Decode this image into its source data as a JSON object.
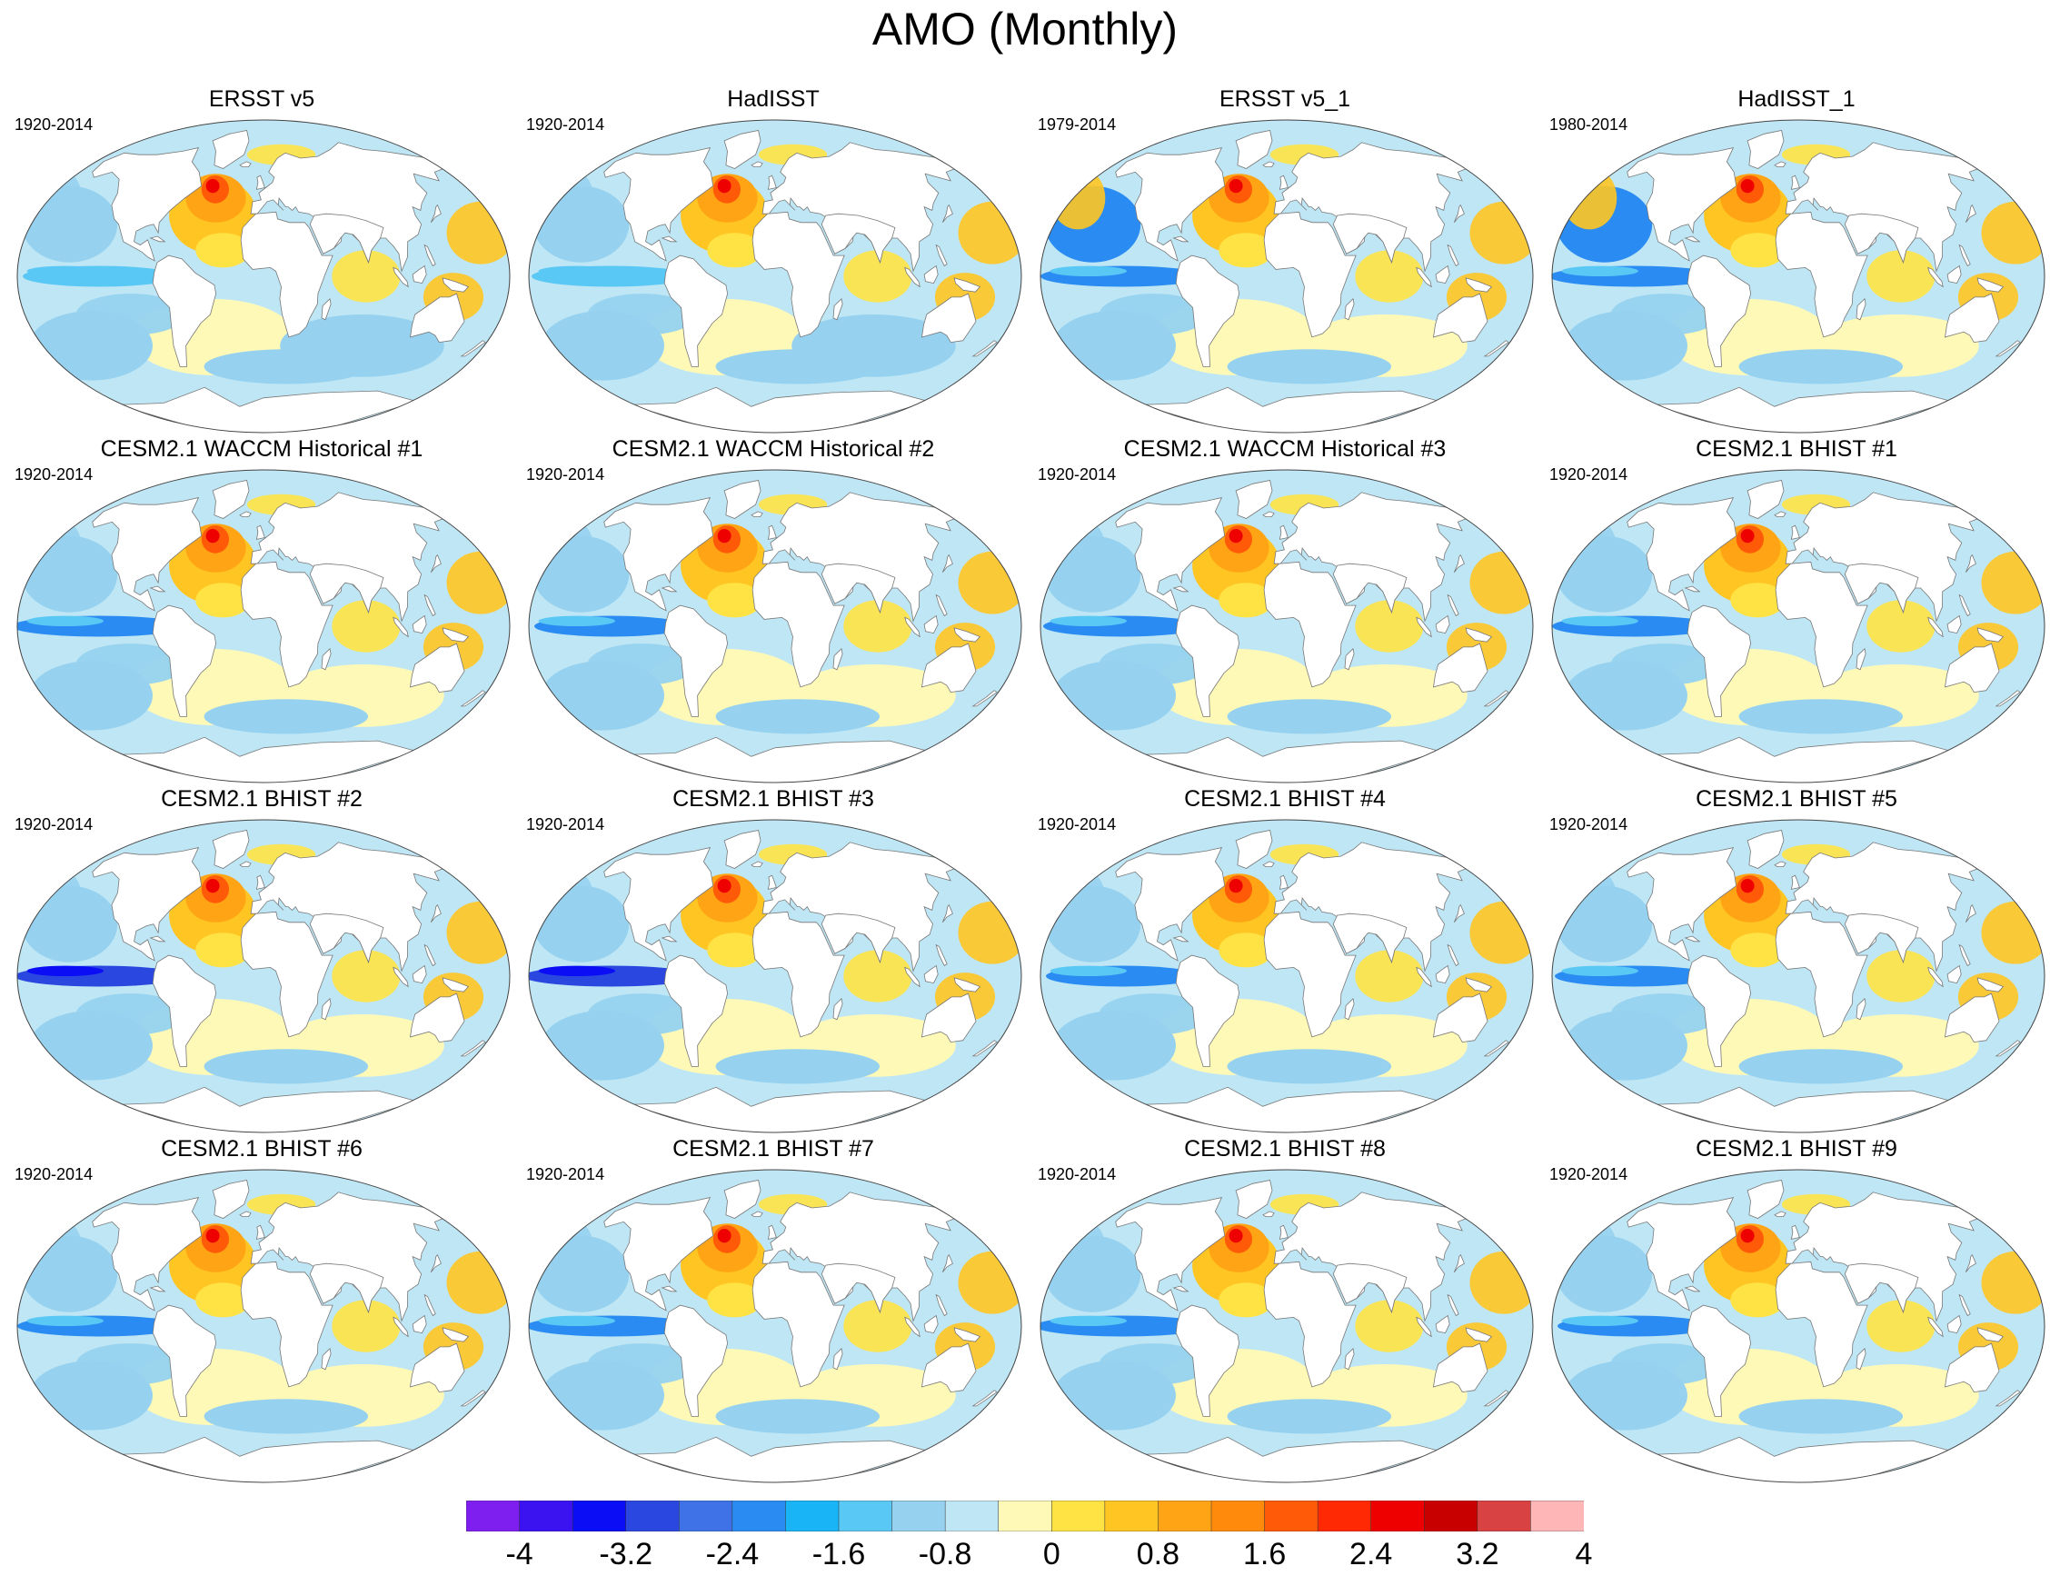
{
  "title": "AMO (Monthly)",
  "panels": [
    {
      "title": "ERSST v5",
      "period": "1920-2014",
      "style": "obs"
    },
    {
      "title": "HadISST",
      "period": "1920-2014",
      "style": "obs"
    },
    {
      "title": "ERSST v5_1",
      "period": "1979-2014",
      "style": "obs_recent"
    },
    {
      "title": "HadISST_1",
      "period": "1980-2014",
      "style": "obs_recent"
    },
    {
      "title": "CESM2.1 WACCM Historical #1",
      "period": "1920-2014",
      "style": "model"
    },
    {
      "title": "CESM2.1 WACCM Historical #2",
      "period": "1920-2014",
      "style": "model"
    },
    {
      "title": "CESM2.1 WACCM Historical #3",
      "period": "1920-2014",
      "style": "model"
    },
    {
      "title": "CESM2.1 BHIST #1",
      "period": "1920-2014",
      "style": "model"
    },
    {
      "title": "CESM2.1 BHIST #2",
      "period": "1920-2014",
      "style": "model_strong"
    },
    {
      "title": "CESM2.1 BHIST #3",
      "period": "1920-2014",
      "style": "model_strong"
    },
    {
      "title": "CESM2.1 BHIST #4",
      "period": "1920-2014",
      "style": "model"
    },
    {
      "title": "CESM2.1 BHIST #5",
      "period": "1920-2014",
      "style": "model"
    },
    {
      "title": "CESM2.1 BHIST #6",
      "period": "1920-2014",
      "style": "model"
    },
    {
      "title": "CESM2.1 BHIST #7",
      "period": "1920-2014",
      "style": "model"
    },
    {
      "title": "CESM2.1 BHIST #8",
      "period": "1920-2014",
      "style": "model"
    },
    {
      "title": "CESM2.1 BHIST #9",
      "period": "1920-2014",
      "style": "model"
    }
  ],
  "colorbar": {
    "levels": [
      "-4",
      "-3.2",
      "-2.4",
      "-1.6",
      "-0.8",
      "0",
      "0.8",
      "1.6",
      "2.4",
      "3.2",
      "4"
    ],
    "colors": [
      "#7f1fef",
      "#3b12f0",
      "#0b0df5",
      "#2a47e0",
      "#3e72e6",
      "#2a8cf2",
      "#19b4f5",
      "#5ac8f5",
      "#96d2ef",
      "#bfe6f5",
      "#fff9b8",
      "#ffe345",
      "#ffc522",
      "#ffa414",
      "#ff8a0c",
      "#ff5a08",
      "#ff2a04",
      "#ef0000",
      "#c90000",
      "#d94242",
      "#ffb6b6"
    ]
  },
  "map_colors": {
    "land": "#ffffff",
    "coast": "#777777",
    "neutral_cool": "#bfe6f5",
    "neutral_warm": "#fff9b8",
    "cool_1": "#96d2ef",
    "cool_2": "#5ac8f5",
    "cool_3": "#2a8cf2",
    "cool_4": "#2a47e0",
    "warm_1": "#ffe345",
    "warm_2": "#ffc522",
    "warm_3": "#ffa414",
    "warm_4": "#ff5a08",
    "warm_5": "#ef0000"
  }
}
